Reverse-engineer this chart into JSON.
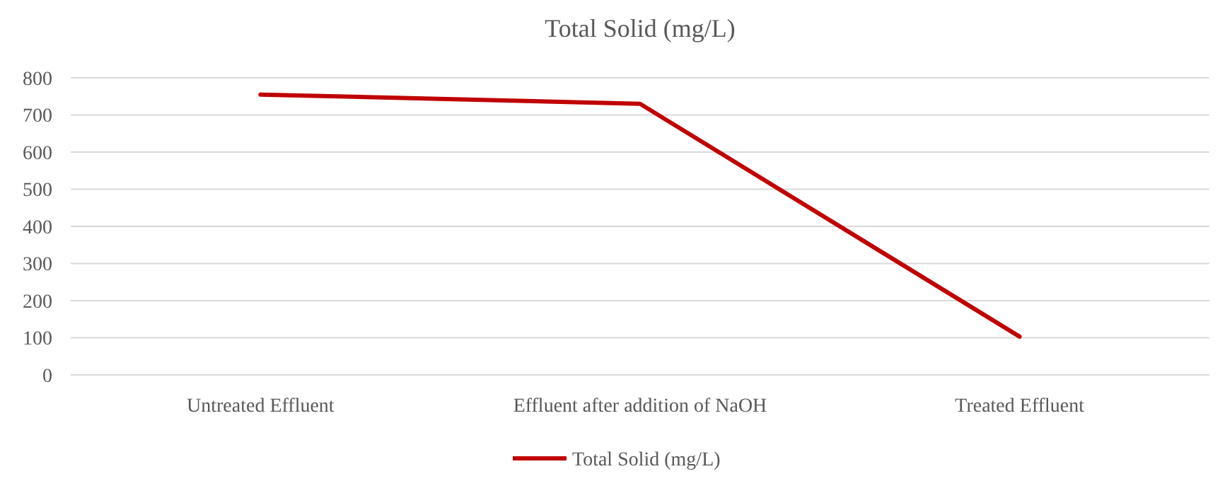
{
  "chart_data": {
    "type": "line",
    "title": "Total Solid (mg/L)",
    "categories": [
      "Untreated Effluent",
      "Effluent after addition of  NaOH",
      "Treated Effluent"
    ],
    "series": [
      {
        "name": "Total Solid (mg/L)",
        "color": "#c00000",
        "values": [
          755,
          730,
          103
        ]
      }
    ],
    "ylim": [
      0,
      800
    ],
    "yticks": [
      0,
      100,
      200,
      300,
      400,
      500,
      600,
      700,
      800
    ],
    "grid": "y",
    "legend": "bottom",
    "marker": "none",
    "line_style": "solid"
  }
}
